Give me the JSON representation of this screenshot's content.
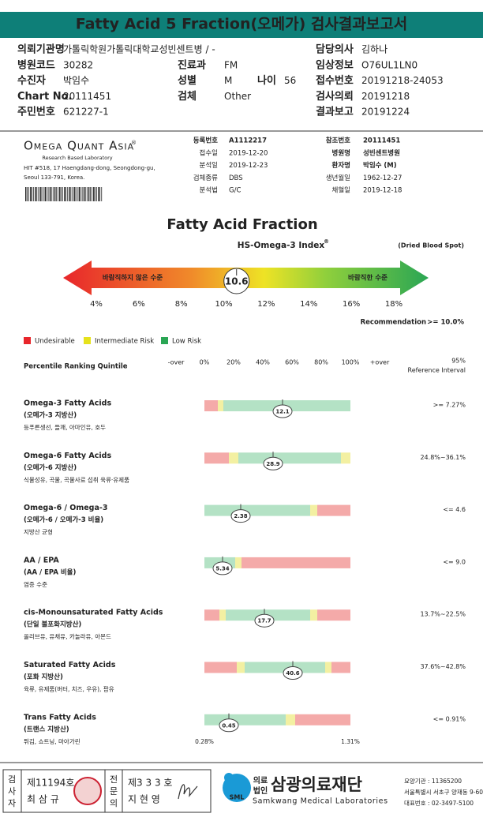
{
  "header": {
    "title": "Fatty Acid 5 Fraction(오메가) 검사결과보고서"
  },
  "info": [
    [
      {
        "label": "의뢰기관명",
        "value": "가톨릭학원가톨릭대학교성빈센트병 / -"
      },
      {
        "label": "담당의사",
        "value": "김하나"
      }
    ],
    [
      {
        "label": "병원코드",
        "value": "30282"
      },
      {
        "label": "진료과",
        "value": "FM"
      },
      {
        "label": "임상정보",
        "value": "O76UL1LN0"
      }
    ],
    [
      {
        "label": "수진자",
        "value": "박임수"
      },
      {
        "label": "성별",
        "value": "M"
      },
      {
        "label": "나이",
        "value": "56"
      },
      {
        "label": "접수번호",
        "value": "20191218-24053"
      }
    ],
    [
      {
        "label": "Chart No.",
        "value": "20111451"
      },
      {
        "label": "검체",
        "value": "Other"
      },
      {
        "label": "검사의뢰",
        "value": "20191218"
      }
    ],
    [
      {
        "label": "주민번호",
        "value": "621227-1"
      },
      {
        "label": "결과보고",
        "value": "20191224"
      }
    ]
  ],
  "lab": {
    "name": "Omega Quant Asia",
    "mark": "®",
    "tagline": "Research Based Laboratory",
    "address": [
      "HIT #518, 17 Haengdang-dong, Seongdong-gu,",
      "Seoul 133-791, Korea."
    ],
    "fields_left": [
      {
        "label": "등록번호",
        "value": "A1112217"
      },
      {
        "label": "접수일",
        "value": "2019-12-20"
      },
      {
        "label": "분석일",
        "value": "2019-12-23"
      },
      {
        "label": "검체종류",
        "value": "DBS"
      },
      {
        "label": "분석법",
        "value": "G/C"
      }
    ],
    "fields_right": [
      {
        "label": "참조번호",
        "value": "20111451"
      },
      {
        "label": "병원명",
        "value": "성빈센트병원"
      },
      {
        "label": "환자명",
        "value": "박임수 (M)"
      },
      {
        "label": "생년월일",
        "value": "1962-12-27"
      },
      {
        "label": "채혈일",
        "value": "2019-12-18"
      }
    ]
  },
  "index": {
    "title": "Fatty Acid Fraction",
    "subtitle": "HS-Omega-3 Index",
    "subtitle_mark": "®",
    "sample": "(Dried Blood Spot)",
    "bad": "바람직하지 않은 수준",
    "good": "바람직한 수준",
    "value": 10.6,
    "ticks": [
      {
        "value": 4,
        "label": "4%"
      },
      {
        "value": 6,
        "label": "6%"
      },
      {
        "value": 8,
        "label": "8%"
      },
      {
        "value": 10,
        "label": "10%"
      },
      {
        "value": 12,
        "label": "12%"
      },
      {
        "value": 14,
        "label": "14%"
      },
      {
        "value": 16,
        "label": "16%"
      },
      {
        "value": 18,
        "label": "18%"
      }
    ],
    "recommendation_label": "Recommendation",
    "recommendation": ">= 10.0%"
  },
  "legend": [
    {
      "name": "Undesirable",
      "color": "#e8262b"
    },
    {
      "name": "Intermediate Risk",
      "color": "#e6e21c"
    },
    {
      "name": "Low Risk",
      "color": "#2aa654"
    }
  ],
  "scale": {
    "quintile_title": "Percentile Ranking Quintile",
    "labels": [
      "-over",
      "0%",
      "20%",
      "40%",
      "60%",
      "80%",
      "100%",
      "+over"
    ],
    "ref_title": [
      "95%",
      "Reference Interval"
    ]
  },
  "items": [
    {
      "name": "Omega-3 Fatty Acids",
      "korean": "(오메가-3 지방산)",
      "foods": "등푸른생선, 들깨, 아마인유, 호두",
      "value": 12.1,
      "reference": ">= 7.27%"
    },
    {
      "name": "Omega-6 Fatty Acids",
      "korean": "(오메가-6 지방산)",
      "foods": "식물성유, 곡물, 곡물사료 섭취 육류·유제품",
      "value": 28.9,
      "reference": "24.8%~36.1%"
    },
    {
      "name": "Omega-6 / Omega-3",
      "korean": "(오메가-6 / 오메가-3 비율)",
      "foods": "지방산 균형",
      "value": 2.38,
      "reference": "<= 4.6"
    },
    {
      "name": "AA / EPA",
      "korean": "(AA / EPA 비율)",
      "foods": "염증 수준",
      "value": 5.34,
      "reference": "<= 9.0"
    },
    {
      "name": "cis-Monounsaturated Fatty Acids",
      "korean": "(단일 불포화지방산)",
      "foods": "올리브유, 유채유, 카놀라유, 아몬드",
      "value": 17.7,
      "reference": "13.7%~22.5%"
    },
    {
      "name": "Saturated Fatty Acids",
      "korean": "(포화 지방산)",
      "foods": "육류, 유제품(버터, 치즈, 우유), 팜유",
      "value": 40.6,
      "reference": "37.6%~42.8%"
    },
    {
      "name": "Trans Fatty Acids",
      "korean": "(트랜스 지방산)",
      "foods": "튀김, 쇼트닝, 마아가린",
      "value": 0.45,
      "reference": "<= 0.91%",
      "range_low": "0.28%",
      "range_high": "1.31%"
    }
  ],
  "footer": {
    "tester_role": [
      "검",
      "사",
      "자"
    ],
    "tester_no": "제11194호",
    "tester_name": "최 삼 규",
    "doctor_role": [
      "전",
      "문",
      "의"
    ],
    "doctor_no": "제3 3 3 호",
    "doctor_name": "지 현 영",
    "org_prefix": [
      "의료",
      "법인"
    ],
    "org_name": "삼광의료재단",
    "org_english": "Samkwang Medical Laboratories",
    "org_logo": "SML",
    "contact": [
      "요양기관 : 11365200",
      "서울특별시 서초구 양재동 9-60",
      "대표번호 : 02-3497-5100"
    ]
  }
}
